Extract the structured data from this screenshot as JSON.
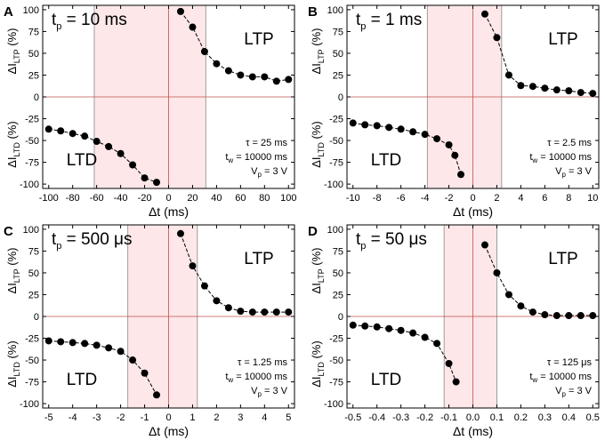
{
  "figure": {
    "background": "#ffffff",
    "marker_color": "#000000",
    "zero_line_color": "#c0504d",
    "window_fill": "#fde7e8",
    "window_line_color": "#888888"
  },
  "chart_data": [
    {
      "panel": "A",
      "type": "scatter",
      "pulse_label": "t",
      "pulse_sub": "p",
      "pulse_value": "= 10 ms",
      "ltp_label": "LTP",
      "ltd_label": "LTD",
      "params": [
        {
          "symbol": "τ",
          "sub": "",
          "value": "= 25 ms"
        },
        {
          "symbol": "t",
          "sub": "w",
          "value": "= 10000 ms"
        },
        {
          "symbol": "V",
          "sub": "p",
          "value": "= 3 V"
        }
      ],
      "xlabel": "Δt (ms)",
      "ylabel_top": {
        "main": "ΔI",
        "sub": "LTP",
        "unit": "(%)"
      },
      "ylabel_bottom": {
        "main": "ΔI",
        "sub": "LTD",
        "unit": "(%)"
      },
      "xlim": [
        -105,
        105
      ],
      "ylim": [
        -105,
        105
      ],
      "xticks": [
        -100,
        -80,
        -60,
        -40,
        -20,
        0,
        20,
        40,
        60,
        80,
        100
      ],
      "xtick_labels": [
        "-100",
        "-80",
        "-60",
        "-40",
        "-20",
        "0",
        "20",
        "40",
        "60",
        "80",
        "100"
      ],
      "yticks": [
        100,
        75,
        50,
        25,
        0,
        -25,
        -50,
        -75,
        -100
      ],
      "ytick_labels": [
        "100",
        "75",
        "50",
        "25",
        "0",
        "-25",
        "-50",
        "-75",
        "-100"
      ],
      "window": [
        -62,
        31
      ],
      "ltd_points": [
        [
          -100,
          -37
        ],
        [
          -90,
          -39
        ],
        [
          -80,
          -42
        ],
        [
          -70,
          -45
        ],
        [
          -60,
          -51
        ],
        [
          -50,
          -57
        ],
        [
          -40,
          -65
        ],
        [
          -30,
          -78
        ],
        [
          -20,
          -93
        ],
        [
          -10,
          -98
        ]
      ],
      "ltp_points": [
        [
          10,
          98
        ],
        [
          20,
          80
        ],
        [
          30,
          52
        ],
        [
          40,
          38
        ],
        [
          50,
          30
        ],
        [
          60,
          25
        ],
        [
          70,
          23
        ],
        [
          80,
          23
        ],
        [
          90,
          18
        ],
        [
          100,
          20
        ]
      ]
    },
    {
      "panel": "B",
      "type": "scatter",
      "pulse_label": "t",
      "pulse_sub": "p",
      "pulse_value": "= 1 ms",
      "ltp_label": "LTP",
      "ltd_label": "LTD",
      "params": [
        {
          "symbol": "τ",
          "sub": "",
          "value": "= 2.5 ms"
        },
        {
          "symbol": "t",
          "sub": "w",
          "value": "= 10000 ms"
        },
        {
          "symbol": "V",
          "sub": "p",
          "value": "= 3 V"
        }
      ],
      "xlabel": "Δt (ms)",
      "ylabel_top": {
        "main": "ΔI",
        "sub": "LTP",
        "unit": "(%)"
      },
      "ylabel_bottom": {
        "main": "ΔI",
        "sub": "LTD",
        "unit": "(%)"
      },
      "xlim": [
        -10.5,
        10.5
      ],
      "ylim": [
        -105,
        105
      ],
      "xticks": [
        -10,
        -8,
        -6,
        -4,
        -2,
        0,
        2,
        4,
        6,
        8,
        10
      ],
      "xtick_labels": [
        "-10",
        "-8",
        "-6",
        "-4",
        "-2",
        "0",
        "2",
        "4",
        "6",
        "8",
        "10"
      ],
      "yticks": [
        100,
        75,
        50,
        25,
        0,
        -25,
        -50,
        -75,
        -100
      ],
      "ytick_labels": [
        "100",
        "75",
        "50",
        "25",
        "0",
        "-25",
        "-50",
        "-75",
        "-100"
      ],
      "window": [
        -3.8,
        2.4
      ],
      "ltd_points": [
        [
          -10,
          -30
        ],
        [
          -9,
          -32
        ],
        [
          -8,
          -33
        ],
        [
          -7,
          -35
        ],
        [
          -6,
          -37
        ],
        [
          -5,
          -40
        ],
        [
          -4,
          -43
        ],
        [
          -3,
          -48
        ],
        [
          -2,
          -55
        ],
        [
          -1.5,
          -67
        ],
        [
          -1,
          -89
        ]
      ],
      "ltp_points": [
        [
          1,
          95
        ],
        [
          2,
          68
        ],
        [
          3,
          25
        ],
        [
          4,
          13
        ],
        [
          5,
          12
        ],
        [
          6,
          10
        ],
        [
          7,
          8
        ],
        [
          8,
          7
        ],
        [
          9,
          5
        ],
        [
          10,
          4
        ]
      ]
    },
    {
      "panel": "C",
      "type": "scatter",
      "pulse_label": "t",
      "pulse_sub": "p",
      "pulse_value": "= 500 μs",
      "ltp_label": "LTP",
      "ltd_label": "LTD",
      "params": [
        {
          "symbol": "τ",
          "sub": "",
          "value": "= 1.25 ms"
        },
        {
          "symbol": "t",
          "sub": "w",
          "value": "= 10000 ms"
        },
        {
          "symbol": "V",
          "sub": "p",
          "value": "= 3 V"
        }
      ],
      "xlabel": "Δt (ms)",
      "ylabel_top": {
        "main": "ΔI",
        "sub": "LTP",
        "unit": "(%)"
      },
      "ylabel_bottom": {
        "main": "ΔI",
        "sub": "LTD",
        "unit": "(%)"
      },
      "xlim": [
        -5.25,
        5.25
      ],
      "ylim": [
        -105,
        105
      ],
      "xticks": [
        -5,
        -4,
        -3,
        -2,
        -1,
        0,
        1,
        2,
        3,
        4,
        5
      ],
      "xtick_labels": [
        "-5",
        "-4",
        "-3",
        "-2",
        "-1",
        "0",
        "1",
        "2",
        "3",
        "4",
        "5"
      ],
      "yticks": [
        100,
        75,
        50,
        25,
        0,
        -25,
        -50,
        -75,
        -100
      ],
      "ytick_labels": [
        "100",
        "75",
        "50",
        "25",
        "0",
        "-25",
        "-50",
        "-75",
        "-100"
      ],
      "window": [
        -1.7,
        1.2
      ],
      "ltd_points": [
        [
          -5,
          -28
        ],
        [
          -4.5,
          -29
        ],
        [
          -4,
          -30
        ],
        [
          -3.5,
          -31
        ],
        [
          -3,
          -33
        ],
        [
          -2.5,
          -36
        ],
        [
          -2,
          -40
        ],
        [
          -1.5,
          -50
        ],
        [
          -1,
          -65
        ],
        [
          -0.5,
          -90
        ]
      ],
      "ltp_points": [
        [
          0.5,
          95
        ],
        [
          1,
          58
        ],
        [
          1.5,
          35
        ],
        [
          2,
          18
        ],
        [
          2.5,
          10
        ],
        [
          3,
          6
        ],
        [
          3.5,
          5
        ],
        [
          4,
          5
        ],
        [
          4.5,
          5
        ],
        [
          5,
          5
        ]
      ]
    },
    {
      "panel": "D",
      "type": "scatter",
      "pulse_label": "t",
      "pulse_sub": "p",
      "pulse_value": "= 50 μs",
      "ltp_label": "LTP",
      "ltd_label": "LTD",
      "params": [
        {
          "symbol": "τ",
          "sub": "",
          "value": "= 125 μs"
        },
        {
          "symbol": "t",
          "sub": "w",
          "value": "= 10000 ms"
        },
        {
          "symbol": "V",
          "sub": "p",
          "value": "= 3 V"
        }
      ],
      "xlabel": "Δt (ms)",
      "ylabel_top": {
        "main": "ΔI",
        "sub": "LTP",
        "unit": "(%)"
      },
      "ylabel_bottom": {
        "main": "ΔI",
        "sub": "LTD",
        "unit": "(%)"
      },
      "xlim": [
        -0.525,
        0.525
      ],
      "ylim": [
        -105,
        105
      ],
      "xticks": [
        -0.5,
        -0.4,
        -0.3,
        -0.2,
        -0.1,
        0,
        0.1,
        0.2,
        0.3,
        0.4,
        0.5
      ],
      "xtick_labels": [
        "-0.5",
        "-0.4",
        "-0.3",
        "-0.2",
        "-0.1",
        "0.0",
        "0.1",
        "0.2",
        "0.3",
        "0.4",
        "0.5"
      ],
      "yticks": [
        100,
        75,
        50,
        25,
        0,
        -25,
        -50,
        -75,
        -100
      ],
      "ytick_labels": [
        "100",
        "75",
        "50",
        "25",
        "0",
        "-25",
        "-50",
        "-75",
        "-100"
      ],
      "window": [
        -0.12,
        0.1
      ],
      "ltd_points": [
        [
          -0.5,
          -10
        ],
        [
          -0.45,
          -11
        ],
        [
          -0.4,
          -12
        ],
        [
          -0.35,
          -14
        ],
        [
          -0.3,
          -16
        ],
        [
          -0.25,
          -19
        ],
        [
          -0.2,
          -24
        ],
        [
          -0.15,
          -31
        ],
        [
          -0.1,
          -54
        ],
        [
          -0.07,
          -75
        ]
      ],
      "ltp_points": [
        [
          0.05,
          82
        ],
        [
          0.1,
          50
        ],
        [
          0.15,
          25
        ],
        [
          0.2,
          12
        ],
        [
          0.25,
          5
        ],
        [
          0.3,
          2
        ],
        [
          0.35,
          1
        ],
        [
          0.4,
          1
        ],
        [
          0.45,
          1
        ],
        [
          0.5,
          1
        ]
      ]
    }
  ]
}
